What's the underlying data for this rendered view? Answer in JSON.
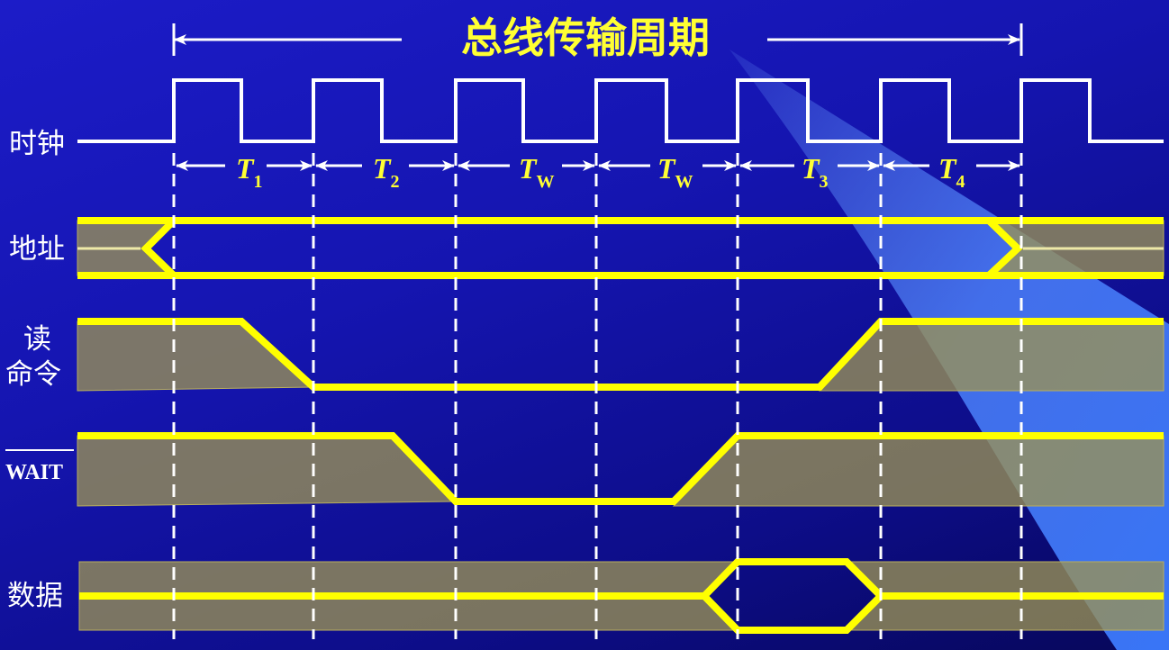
{
  "title": "总线传输周期",
  "signals": {
    "clock": "时钟",
    "address": "地址",
    "read_line1": "读",
    "read_line2": "命令",
    "wait": "WAIT",
    "data": "数据"
  },
  "periods": [
    {
      "main": "T",
      "sub": "1"
    },
    {
      "main": "T",
      "sub": "2"
    },
    {
      "main": "T",
      "sub": "W"
    },
    {
      "main": "T",
      "sub": "W"
    },
    {
      "main": "T",
      "sub": "3"
    },
    {
      "main": "T",
      "sub": "4"
    }
  ],
  "colors": {
    "signal": "#ffff00",
    "band": "#9a9255",
    "clock": "#ffffff",
    "background": "#1515b0"
  }
}
